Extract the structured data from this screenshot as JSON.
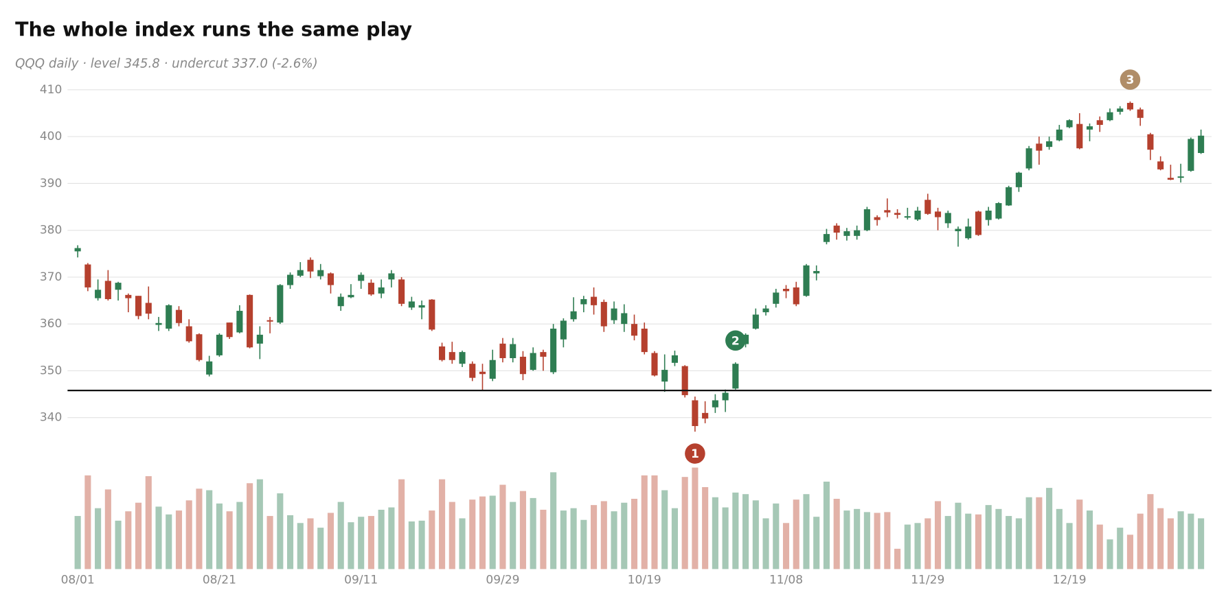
{
  "chart_data": {
    "type": "candlestick",
    "title": "The whole index runs the same play",
    "subtitle": "QQQ daily · level 345.8 · undercut 337.0 (-2.6%)",
    "categories": [
      "08/01",
      null,
      null,
      null,
      null,
      null,
      null,
      null,
      null,
      null,
      null,
      null,
      null,
      null,
      "08/21",
      null,
      null,
      null,
      null,
      null,
      null,
      null,
      null,
      null,
      null,
      null,
      null,
      null,
      "09/11",
      null,
      null,
      null,
      null,
      null,
      null,
      null,
      null,
      null,
      null,
      null,
      null,
      null,
      "09/29",
      null,
      null,
      null,
      null,
      null,
      null,
      null,
      null,
      null,
      null,
      null,
      null,
      null,
      "10/19",
      null,
      null,
      null,
      null,
      null,
      null,
      null,
      null,
      null,
      null,
      null,
      null,
      null,
      "11/08",
      null,
      null,
      null,
      null,
      null,
      null,
      null,
      null,
      null,
      null,
      null,
      null,
      null,
      "11/29",
      null,
      null,
      null,
      null,
      null,
      null,
      null,
      null,
      null,
      null,
      null,
      null,
      null,
      "12/19",
      null,
      null,
      null,
      null,
      null,
      null,
      null,
      null,
      null,
      null,
      null,
      null,
      null
    ],
    "open": [
      375.5,
      372.7,
      365.5,
      369.2,
      367.3,
      366.2,
      366,
      364.5,
      359.8,
      359,
      363,
      359.5,
      357.8,
      349.2,
      353.3,
      360.3,
      358.2,
      366.2,
      355.8,
      360.8,
      360.3,
      368.3,
      370.3,
      373.7,
      370.2,
      370.8,
      363.8,
      365.7,
      369.2,
      368.8,
      366.5,
      369.5,
      369.5,
      363.5,
      363.5,
      365.2,
      355.2,
      354,
      351.5,
      351.5,
      349.8,
      348.3,
      355.8,
      352.7,
      353,
      350.2,
      354,
      349.7,
      356.7,
      361,
      364.2,
      365.8,
      364.7,
      360.8,
      360,
      360,
      359,
      353.8,
      347.7,
      351.7,
      351,
      343.7,
      341,
      342.2,
      343.7,
      346.2,
      355.7,
      359,
      362.5,
      364.3,
      367.5,
      367.8,
      366,
      370.8,
      377.5,
      381,
      378.8,
      378.8,
      380,
      382.8,
      384.3,
      383.7,
      382.7,
      382.3,
      386.5,
      384,
      381.5,
      379.8,
      378.3,
      384,
      382.2,
      382.5,
      385.3,
      389.2,
      393.2,
      398.5,
      397.8,
      399.2,
      402,
      402.7,
      401.5,
      403.5,
      403.5,
      405.3,
      407.2,
      405.8,
      400.5,
      394.7,
      391.2,
      391.2,
      392.7,
      396.5
    ],
    "high": [
      376.8,
      373,
      369.5,
      371.5,
      369,
      366.5,
      366,
      368,
      361.5,
      364.2,
      363.8,
      361,
      358,
      353.2,
      358,
      360.3,
      364,
      366.3,
      359.5,
      361.5,
      368.5,
      371,
      373.2,
      374.2,
      372.8,
      371,
      366.5,
      368.5,
      371,
      369.5,
      369.5,
      371.5,
      370,
      365.8,
      365,
      365.3,
      356,
      356.2,
      354.3,
      352,
      351.5,
      354.5,
      357,
      357,
      354.2,
      355,
      354.5,
      360,
      361.2,
      365.7,
      366,
      367.8,
      365.2,
      364.8,
      364.2,
      362,
      360.3,
      354.2,
      353.5,
      354.3,
      351.2,
      344.5,
      343.5,
      345,
      346,
      351.8,
      358,
      363.3,
      364,
      367.5,
      368.3,
      369,
      372.8,
      372.5,
      380.3,
      381.5,
      380.5,
      381,
      385,
      383.2,
      386.8,
      384.5,
      384.8,
      385,
      387.8,
      384.8,
      384.2,
      380.8,
      382.5,
      384.2,
      385,
      386,
      389.5,
      392.5,
      398,
      400,
      400,
      402.5,
      403.7,
      405,
      402.8,
      404.3,
      406,
      406.5,
      407.5,
      406.2,
      400.8,
      395.8,
      394,
      394.2,
      399.8,
      401.5
    ],
    "low": [
      374.2,
      367,
      365,
      365,
      365,
      362.5,
      361,
      361,
      358.5,
      358.5,
      359.5,
      356,
      352,
      348.8,
      353,
      356.8,
      358,
      354.8,
      352.5,
      358,
      360,
      367.5,
      370,
      369.8,
      369.5,
      366.5,
      362.8,
      365.5,
      367.5,
      366,
      365.5,
      367.8,
      363.8,
      363,
      361,
      358.5,
      352,
      351.5,
      350.8,
      347.8,
      345.8,
      347.8,
      351.8,
      351.8,
      348,
      350,
      350,
      349.3,
      355,
      360.5,
      362.5,
      362,
      358.3,
      360,
      358.3,
      356.5,
      353.5,
      348.8,
      345.5,
      351,
      344.3,
      337,
      338.8,
      341,
      341.2,
      346,
      355,
      358.8,
      361.8,
      363.5,
      365.5,
      363.8,
      365.8,
      369.3,
      377,
      378,
      377.8,
      378,
      379.8,
      381,
      382.8,
      382.5,
      382.3,
      382,
      383.3,
      380,
      380.5,
      376.5,
      378,
      378.8,
      381,
      382.3,
      385.2,
      388.2,
      392.8,
      394,
      397.2,
      399,
      401.8,
      397.3,
      399,
      401,
      403.3,
      404.7,
      405.5,
      402.3,
      395,
      392.8,
      390.7,
      390.2,
      392.5,
      396.3
    ],
    "close": [
      376.2,
      367.8,
      367.3,
      365.3,
      368.8,
      365.5,
      361.7,
      362.2,
      360.2,
      364,
      360.2,
      356.3,
      352.3,
      352,
      357.7,
      357.2,
      362.8,
      355,
      357.7,
      360.5,
      368.3,
      370.5,
      371.5,
      371.2,
      371.5,
      368.3,
      365.8,
      366.2,
      370.5,
      366.3,
      367.8,
      370.8,
      364.3,
      364.8,
      364,
      358.8,
      352.3,
      352.3,
      354,
      348.5,
      349.3,
      352.3,
      352.7,
      355.7,
      349.3,
      353.8,
      353,
      359,
      360.7,
      362.7,
      365.3,
      364,
      359.5,
      363.3,
      362.3,
      357.5,
      354,
      349,
      350.2,
      353.3,
      344.8,
      338.2,
      339.8,
      343.7,
      345.3,
      351.5,
      357.7,
      362,
      363.3,
      366.7,
      367,
      364.2,
      372.5,
      371.3,
      379.2,
      379.5,
      379.8,
      380,
      384.5,
      382.2,
      383.8,
      383.3,
      383,
      384.2,
      383.5,
      382.8,
      383.7,
      380.3,
      380.8,
      379,
      384.2,
      385.8,
      389.2,
      392.3,
      397.5,
      397,
      399,
      401.5,
      403.5,
      397.5,
      402.2,
      402.5,
      405.2,
      406,
      405.8,
      404,
      397.2,
      393,
      390.8,
      391.5,
      399.5,
      400.2
    ],
    "volume": [
      68,
      120,
      78,
      102,
      62,
      74,
      85,
      119,
      80,
      70,
      75,
      88,
      103,
      101,
      84,
      74,
      86,
      110,
      115,
      68,
      97,
      69,
      59,
      65,
      53,
      72,
      86,
      60,
      67,
      68,
      76,
      79,
      115,
      61,
      62,
      75,
      115,
      86,
      65,
      89,
      93,
      94,
      108,
      86,
      100,
      91,
      76,
      124,
      75,
      78,
      63,
      82,
      87,
      74,
      85,
      90,
      120,
      120,
      101,
      78,
      118,
      130,
      105,
      92,
      79,
      98,
      96,
      88,
      65,
      84,
      59,
      89,
      96,
      67,
      112,
      90,
      75,
      77,
      73,
      72,
      73,
      26,
      57,
      59,
      65,
      87,
      68,
      85,
      71,
      70,
      82,
      77,
      68,
      65,
      92,
      92,
      104,
      77,
      59,
      89,
      75,
      57,
      38,
      53,
      44,
      71,
      96,
      78,
      65,
      74,
      71,
      65
    ],
    "up_color": "#2e7d52",
    "down_color": "#b5402e",
    "up_volume_color": "#a6c8b6",
    "down_volume_color": "#e2b1a7",
    "level": 345.8,
    "level_color": "#111111",
    "ylim": [
      333,
      412
    ],
    "yticks": [
      340,
      350,
      360,
      370,
      380,
      390,
      400,
      410
    ],
    "vlim": [
      0,
      140
    ],
    "grid": true,
    "annotations": [
      {
        "label": "1",
        "index": 61,
        "color": "#b5402e"
      },
      {
        "label": "2",
        "index": 65,
        "color": "#2e7d52"
      },
      {
        "label": "3",
        "index": 104,
        "color": "#b08d68"
      }
    ]
  }
}
